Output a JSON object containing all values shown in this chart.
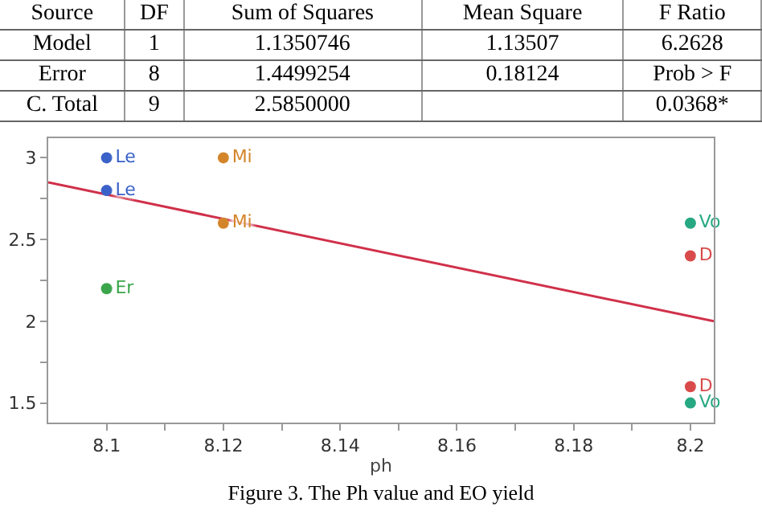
{
  "chart_data": [
    {
      "type": "other",
      "categories": [
        "Source",
        "DF",
        "Sum of Squares",
        "Mean Square",
        "F Ratio"
      ],
      "y_categories": [
        "Model",
        "Error",
        "C. Total"
      ],
      "cell_labels": [
        [
          "1",
          "1.1350746",
          "1.13507",
          "6.2628"
        ],
        [
          "8",
          "1.4499254",
          "0.18124",
          "Prob > F"
        ],
        [
          "9",
          "2.5850000",
          null,
          "0.0368*"
        ]
      ]
    },
    {
      "type": "scatter",
      "xlabel": "ph",
      "annotations": [
        "Figure 3. The Ph value and EO yield"
      ],
      "marker": "circle",
      "grid": false,
      "xlim": [
        8.09,
        8.204
      ],
      "xticks": [
        8.1,
        {
          "value": 8.11,
          "label": null
        },
        8.12,
        {
          "value": 8.13,
          "label": null
        },
        8.14,
        {
          "value": 8.15,
          "label": null
        },
        8.16,
        {
          "value": 8.17,
          "label": null
        },
        8.18,
        {
          "value": 8.19,
          "label": null
        },
        8.2
      ],
      "ylim": [
        1.38,
        3.12
      ],
      "yticks": [
        1.5,
        {
          "value": 1.75,
          "label": null
        },
        2,
        {
          "value": 2.25,
          "label": null
        },
        2.5,
        {
          "value": 2.75,
          "label": null
        },
        3
      ],
      "series": [
        {
          "name": "Le",
          "color": "#3a62c8",
          "x": [
            8.1,
            8.1
          ],
          "values": [
            3.0,
            2.8
          ]
        },
        {
          "name": "Er",
          "color": "#3aa54a",
          "x": [
            8.1
          ],
          "values": [
            2.2
          ]
        },
        {
          "name": "Mi",
          "color": "#d4852a",
          "x": [
            8.12,
            8.12
          ],
          "values": [
            3.0,
            2.6
          ]
        },
        {
          "name": "Vo",
          "color": "#26a882",
          "x": [
            8.2,
            8.2
          ],
          "values": [
            2.6,
            1.5
          ]
        },
        {
          "name": "D",
          "color": "#d94a4a",
          "x": [
            8.2,
            8.2
          ],
          "values": [
            2.4,
            1.6
          ]
        },
        {
          "type": "line",
          "marker": "none",
          "color": "#d0304a",
          "x": [
            8.09,
            8.204
          ],
          "values": [
            2.85,
            2.0
          ]
        }
      ]
    }
  ]
}
